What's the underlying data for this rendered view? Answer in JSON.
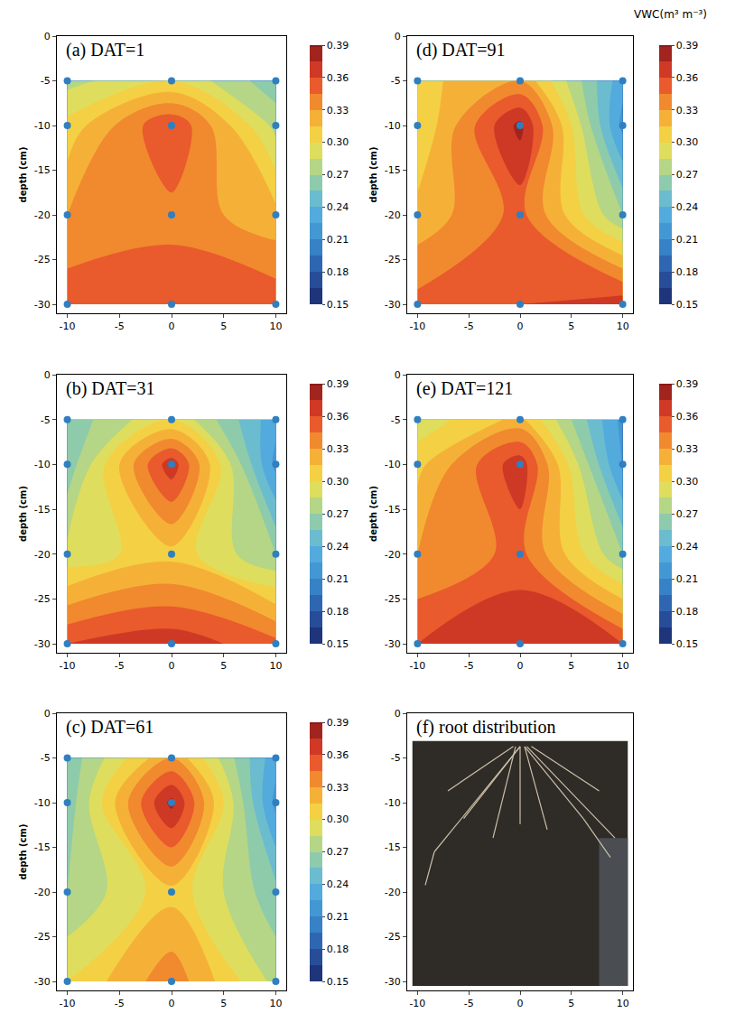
{
  "chart_data": [
    {
      "type": "contour",
      "title": "(a) DAT=1",
      "x": [
        -10,
        0,
        10
      ],
      "y": [
        -5,
        -10,
        -20,
        -30
      ],
      "z": [
        [
          0.28,
          0.3,
          0.26
        ],
        [
          0.305,
          0.36,
          0.28
        ],
        [
          0.33,
          0.34,
          0.32
        ],
        [
          0.355,
          0.355,
          0.355
        ]
      ],
      "xlim": [
        -11,
        11
      ],
      "ylim": [
        -31,
        0
      ],
      "xticks": [
        -10,
        -5,
        0,
        5,
        10
      ],
      "yticks": [
        0,
        -5,
        -10,
        -15,
        -20,
        -25,
        -30
      ],
      "y_label": "depth (cm)",
      "marker": "circle",
      "zlim": [
        0.15,
        0.39
      ],
      "z_step": 0.015,
      "zticks": [
        0.15,
        0.18,
        0.21,
        0.24,
        0.27,
        {
          "value": 0.3,
          "label": "0.30"
        },
        0.33,
        0.36,
        0.39
      ]
    },
    {
      "type": "contour",
      "title": "(b) DAT=31",
      "x": [
        -10,
        0,
        10
      ],
      "y": [
        -5,
        -10,
        -20,
        -30
      ],
      "z": [
        [
          0.26,
          0.3,
          0.23
        ],
        [
          0.26,
          0.37,
          0.22
        ],
        [
          0.29,
          0.31,
          0.27
        ],
        [
          0.36,
          0.37,
          0.35
        ]
      ],
      "xlim": [
        -11,
        11
      ],
      "ylim": [
        -31,
        0
      ],
      "xticks": [
        -10,
        -5,
        0,
        5,
        10
      ],
      "yticks": [
        0,
        -5,
        -10,
        -15,
        -20,
        -25,
        -30
      ],
      "y_label": "depth (cm)",
      "marker": "circle",
      "zlim": [
        0.15,
        0.39
      ],
      "z_step": 0.015,
      "zticks": [
        0.15,
        0.18,
        0.21,
        0.24,
        0.27,
        {
          "value": 0.3,
          "label": "0.30"
        },
        0.33,
        0.36,
        0.39
      ]
    },
    {
      "type": "contour",
      "title": "(c) DAT=61",
      "x": [
        -10,
        0,
        10
      ],
      "y": [
        -5,
        -10,
        -20,
        -30
      ],
      "z": [
        [
          0.26,
          0.33,
          0.23
        ],
        [
          0.26,
          0.38,
          0.22
        ],
        [
          0.27,
          0.31,
          0.26
        ],
        [
          0.3,
          0.34,
          0.28
        ]
      ],
      "xlim": [
        -11,
        11
      ],
      "ylim": [
        -31,
        0
      ],
      "xticks": [
        -10,
        -5,
        0,
        5,
        10
      ],
      "yticks": [
        0,
        -5,
        -10,
        -15,
        -20,
        -25,
        -30
      ],
      "y_label": "depth (cm)",
      "marker": "circle",
      "zlim": [
        0.15,
        0.39
      ],
      "z_step": 0.015,
      "zticks": [
        0.15,
        0.18,
        0.21,
        0.24,
        0.27,
        {
          "value": 0.3,
          "label": "0.30"
        },
        0.33,
        0.36,
        0.39
      ]
    },
    {
      "type": "contour",
      "title": "(d) DAT=91",
      "colorbar_title": "VWC(m³ m⁻³)",
      "x": [
        -10,
        0,
        10
      ],
      "y": [
        -5,
        -10,
        -20,
        -30
      ],
      "z": [
        [
          0.31,
          0.33,
          0.23
        ],
        [
          0.3,
          0.38,
          0.22
        ],
        [
          0.32,
          0.35,
          0.27
        ],
        [
          0.35,
          0.36,
          0.37
        ]
      ],
      "xlim": [
        -11,
        11
      ],
      "ylim": [
        -31,
        0
      ],
      "xticks": [
        -10,
        -5,
        0,
        5,
        10
      ],
      "yticks": [
        0,
        -5,
        -10,
        -15,
        -20,
        -25,
        -30
      ],
      "y_label": "depth (cm)",
      "marker": "circle",
      "zlim": [
        0.15,
        0.39
      ],
      "z_step": 0.015,
      "zticks": [
        0.15,
        0.18,
        0.21,
        0.24,
        0.27,
        {
          "value": 0.3,
          "label": "0.30"
        },
        0.33,
        0.36,
        0.39
      ]
    },
    {
      "type": "contour",
      "title": "(e) DAT=121",
      "x": [
        -10,
        0,
        10
      ],
      "y": [
        -5,
        -10,
        -20,
        -30
      ],
      "z": [
        [
          0.29,
          0.32,
          0.22
        ],
        [
          0.31,
          0.37,
          0.22
        ],
        [
          0.33,
          0.35,
          0.27
        ],
        [
          0.36,
          0.375,
          0.36
        ]
      ],
      "xlim": [
        -11,
        11
      ],
      "ylim": [
        -31,
        0
      ],
      "xticks": [
        -10,
        -5,
        0,
        5,
        10
      ],
      "yticks": [
        0,
        -5,
        -10,
        -15,
        -20,
        -25,
        -30
      ],
      "y_label": "depth (cm)",
      "marker": "circle",
      "zlim": [
        0.15,
        0.39
      ],
      "z_step": 0.015,
      "zticks": [
        0.15,
        0.18,
        0.21,
        0.24,
        0.27,
        {
          "value": 0.3,
          "label": "0.30"
        },
        0.33,
        0.36,
        0.39
      ]
    },
    {
      "type": "image",
      "title": "(f) root distribution",
      "xlim": [
        -11,
        11
      ],
      "ylim": [
        -31,
        0
      ],
      "xticks": [
        -10,
        -5,
        0,
        5,
        10
      ],
      "yticks": [
        0,
        -5,
        -10,
        -15,
        -20,
        -25,
        -30
      ]
    }
  ]
}
